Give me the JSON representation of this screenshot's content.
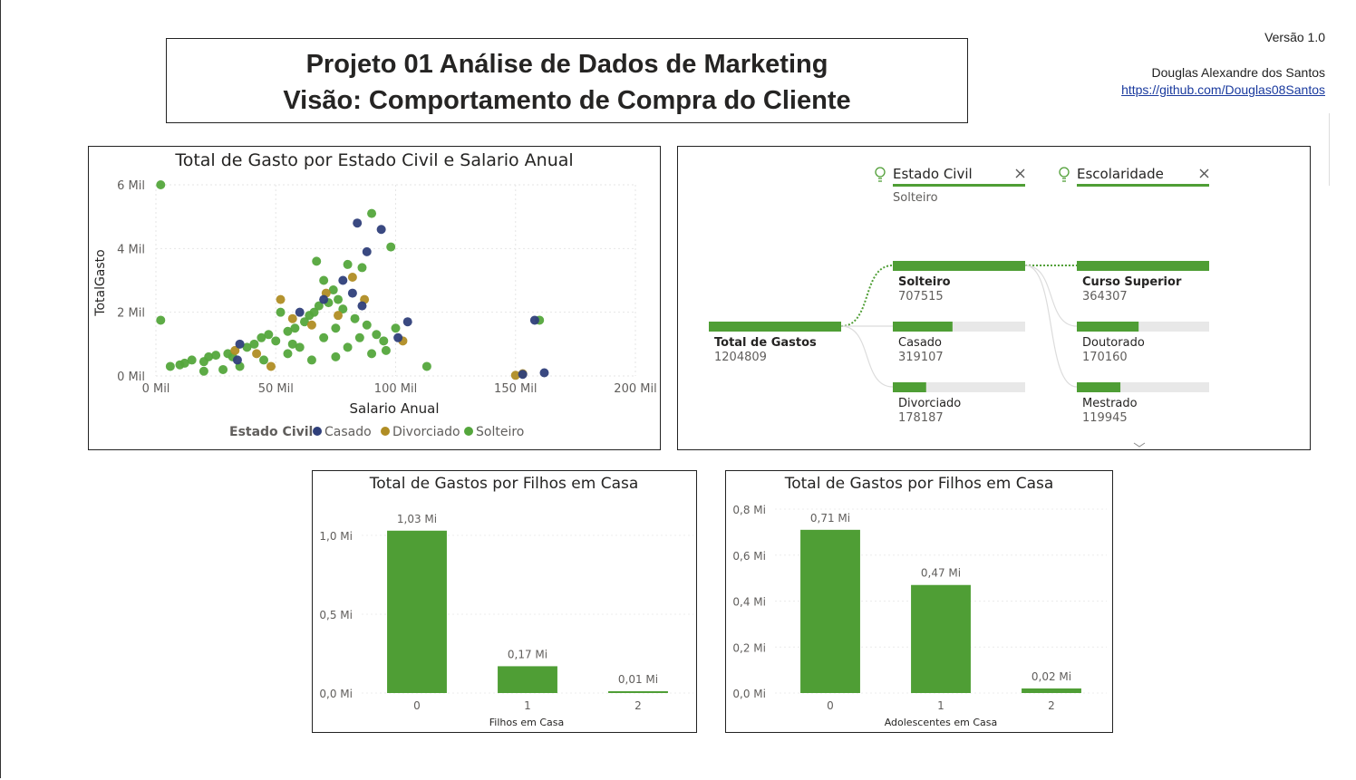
{
  "header": {
    "title_line1": "Projeto 01 Análise de Dados de Marketing",
    "title_line2": "Visão: Comportamento de Compra do Cliente",
    "version": "Versão 1.0",
    "author": "Douglas Alexandre dos Santos",
    "link": "https://github.com/Douglas08Santos"
  },
  "colors": {
    "casado": "#2f3f7a",
    "divorciado": "#b08d24",
    "solteiro": "#54a63c",
    "bar": "#4f9e35",
    "track": "#e8e8e8"
  },
  "chart_data": [
    {
      "type": "scatter",
      "title": "Total de Gasto por Estado Civil e Salario Anual",
      "xlabel": "Salario Anual",
      "ylabel": "TotalGasto",
      "xlim": [
        0,
        200000
      ],
      "ylim": [
        0,
        6000
      ],
      "x_ticks": [
        "0 Mil",
        "50 Mil",
        "100 Mil",
        "150 Mil",
        "200 Mil"
      ],
      "y_ticks": [
        "0 Mil",
        "2 Mil",
        "4 Mil",
        "6 Mil"
      ],
      "legend_title": "Estado Civil",
      "legend_position": "bottom",
      "series": [
        {
          "name": "Casado",
          "points": [
            [
              84000,
              4800
            ],
            [
              88000,
              3900
            ],
            [
              94000,
              4600
            ],
            [
              105000,
              1700
            ],
            [
              158000,
              1750
            ],
            [
              162000,
              100
            ],
            [
              153000,
              50
            ],
            [
              101000,
              1200
            ],
            [
              86000,
              2200
            ],
            [
              78000,
              3000
            ],
            [
              82000,
              2600
            ],
            [
              70000,
              2400
            ],
            [
              60000,
              2000
            ],
            [
              35000,
              1000
            ],
            [
              34000,
              500
            ]
          ]
        },
        {
          "name": "Divorciado",
          "points": [
            [
              52000,
              2400
            ],
            [
              57000,
              1800
            ],
            [
              82000,
              3100
            ],
            [
              87000,
              2400
            ],
            [
              150000,
              20
            ],
            [
              153000,
              70
            ],
            [
              103000,
              1100
            ],
            [
              42000,
              700
            ],
            [
              33000,
              800
            ],
            [
              65000,
              1600
            ],
            [
              76000,
              1900
            ],
            [
              71000,
              2600
            ],
            [
              48000,
              300
            ]
          ]
        },
        {
          "name": "Solteiro",
          "points": [
            [
              2000,
              6000
            ],
            [
              2000,
              1750
            ],
            [
              90000,
              5100
            ],
            [
              98000,
              4050
            ],
            [
              86000,
              3400
            ],
            [
              76000,
              2400
            ],
            [
              67000,
              3600
            ],
            [
              70000,
              3000
            ],
            [
              74000,
              2700
            ],
            [
              80000,
              3500
            ],
            [
              160000,
              1750
            ],
            [
              113000,
              300
            ],
            [
              96000,
              800
            ],
            [
              100000,
              1500
            ],
            [
              52000,
              2000
            ],
            [
              6000,
              300
            ],
            [
              10000,
              350
            ],
            [
              12000,
              400
            ],
            [
              15000,
              500
            ],
            [
              20000,
              450
            ],
            [
              22000,
              600
            ],
            [
              25000,
              650
            ],
            [
              30000,
              700
            ],
            [
              32000,
              600
            ],
            [
              38000,
              900
            ],
            [
              41000,
              1000
            ],
            [
              44000,
              1200
            ],
            [
              47000,
              1300
            ],
            [
              50000,
              1100
            ],
            [
              55000,
              1400
            ],
            [
              58000,
              1500
            ],
            [
              62000,
              1700
            ],
            [
              64000,
              1900
            ],
            [
              66000,
              2000
            ],
            [
              68000,
              2200
            ],
            [
              72000,
              2300
            ],
            [
              78000,
              2100
            ],
            [
              83000,
              1800
            ],
            [
              88000,
              1600
            ],
            [
              92000,
              1300
            ],
            [
              95000,
              1100
            ],
            [
              60000,
              900
            ],
            [
              55000,
              700
            ],
            [
              45000,
              500
            ],
            [
              35000,
              300
            ],
            [
              28000,
              200
            ],
            [
              20000,
              150
            ],
            [
              70000,
              1200
            ],
            [
              75000,
              1500
            ],
            [
              85000,
              1200
            ],
            [
              90000,
              700
            ],
            [
              65000,
              500
            ],
            [
              75000,
              600
            ],
            [
              57000,
              1000
            ],
            [
              80000,
              900
            ]
          ]
        }
      ]
    },
    {
      "type": "bar",
      "title": "Total de Gastos por Filhos em Casa",
      "xlabel": "Filhos em Casa",
      "categories": [
        "0",
        "1",
        "2"
      ],
      "values": [
        1.03,
        0.17,
        0.01
      ],
      "data_labels": [
        "1,03 Mi",
        "0,17 Mi",
        "0,01 Mi"
      ],
      "ylim": [
        0,
        1.0
      ],
      "y_ticks": [
        "0,0 Mi",
        "0,5 Mi",
        "1,0 Mi"
      ]
    },
    {
      "type": "bar",
      "title": "Total de Gastos por Filhos em Casa",
      "xlabel": "Adolescentes em Casa",
      "categories": [
        "0",
        "1",
        "2"
      ],
      "values": [
        0.71,
        0.47,
        0.02
      ],
      "data_labels": [
        "0,71 Mi",
        "0,47 Mi",
        "0,02 Mi"
      ],
      "ylim": [
        0,
        0.8
      ],
      "y_ticks": [
        "0,0 Mi",
        "0,2 Mi",
        "0,4 Mi",
        "0,6 Mi",
        "0,8 Mi"
      ]
    }
  ],
  "decomposition_tree": {
    "root": {
      "label": "Total de Gastos",
      "value": 1204809
    },
    "level1": {
      "header": "Estado Civil",
      "selected": "Solteiro",
      "nodes": [
        {
          "label": "Solteiro",
          "value": 707515
        },
        {
          "label": "Casado",
          "value": 319107
        },
        {
          "label": "Divorciado",
          "value": 178187
        }
      ]
    },
    "level2": {
      "header": "Escolaridade",
      "nodes": [
        {
          "label": "Curso Superior",
          "value": 364307
        },
        {
          "label": "Doutorado",
          "value": 170160
        },
        {
          "label": "Mestrado",
          "value": 119945
        }
      ]
    }
  }
}
